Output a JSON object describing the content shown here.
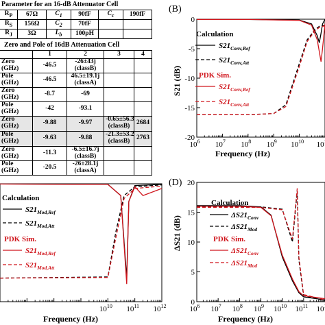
{
  "table1": {
    "caption": "Parameter for an 16-dB Attenuator Cell",
    "rows": [
      [
        "R_P",
        "67Ω",
        "C_1",
        "90fF",
        "C_c",
        "190fF"
      ],
      [
        "R_S",
        "156Ω",
        "C_2",
        "70fF",
        "",
        ""
      ],
      [
        "R_J",
        "3Ω",
        "L_b",
        "100pH",
        "",
        ""
      ]
    ]
  },
  "table2": {
    "caption": "Zero and Pole of 16dB Attenuation Cell",
    "header": [
      "",
      "1",
      "2",
      "3",
      "4"
    ],
    "rows": [
      [
        "Zero (GHz)",
        "-46.5",
        "-26±43j (classB)",
        "",
        ""
      ],
      [
        "Pole (GHz)",
        "-46.5",
        "46.5±19.1j (classA)",
        "",
        ""
      ],
      [
        "Zero (GHz)",
        "-8.7",
        "-69",
        "",
        ""
      ],
      [
        "Pole (GHz)",
        "-42",
        "-93.1",
        "",
        ""
      ],
      [
        "Zero (GHz)",
        "-9.88",
        "-9.97",
        "-0.65±56.3j (classB)",
        "2684"
      ],
      [
        "Pole (GHz)",
        "-9.63",
        "-9.88",
        "-21.3±53.2j (classB)",
        "2763"
      ],
      [
        "Zero (GHz)",
        "-11.3",
        "-6.5±16.7j (classB)",
        "",
        ""
      ],
      [
        "Pole (GHz)",
        "-20.5",
        "-26±28.1j (classA)",
        "",
        ""
      ]
    ]
  },
  "panelB": {
    "label": "(B)",
    "ylabel": "S21 (dB)",
    "xlabel": "Frequency (Hz)",
    "yticks": [
      "0",
      "-5",
      "-10",
      "-15",
      "-20"
    ],
    "xticks": [
      "10",
      "10",
      "10",
      "10",
      "10",
      "10",
      "10"
    ],
    "xexps": [
      "6",
      "7",
      "8",
      "9",
      "10",
      "11"
    ],
    "legend": {
      "calc_title": "Calculation",
      "s_main": "S21",
      "ref_sub": "Conv,Ref",
      "att_sub": "Conv,Att",
      "pdk_title": "PDK Sim."
    }
  },
  "panelC": {
    "xlabel": "Frequency (Hz)",
    "xticks": [
      "10",
      "10",
      "10"
    ],
    "xexps": [
      "10",
      "11",
      "12"
    ],
    "legend": {
      "calc_title": "Calculation",
      "s_main": "S21",
      "ref_sub": "Mod,Ref",
      "att_sub": "Mod,Att",
      "pdk_title": "PDK Sim."
    }
  },
  "panelD": {
    "label": "(D)",
    "ylabel": "ΔS21 (dB)",
    "xlabel": "Frequency (Hz)",
    "yticks": [
      "20",
      "15",
      "10",
      "5",
      "0"
    ],
    "xticks": [
      "10",
      "10",
      "10",
      "10",
      "10",
      "10",
      "10"
    ],
    "xexps": [
      "6",
      "7",
      "8",
      "9",
      "10",
      "11",
      "12"
    ],
    "legend": {
      "calc_title": "Calculation",
      "s_main": "ΔS21",
      "conv_sub": "Conv",
      "mod_sub": "Mod",
      "pdk_title": "PDK Sim."
    }
  },
  "chart_data": [
    {
      "type": "line",
      "panel": "B",
      "xlabel": "Frequency (Hz)",
      "ylabel": "S21 (dB)",
      "xscale": "log",
      "xlim": [
        1000000.0,
        100000000000.0
      ],
      "ylim": [
        -20,
        0
      ],
      "series": [
        {
          "name": "S21 Conv,Ref (Calculation)",
          "color": "#000000",
          "style": "solid",
          "points": [
            [
              1000000.0,
              -0.05
            ],
            [
              100000000.0,
              -0.05
            ],
            [
              10000000000.0,
              -0.15
            ],
            [
              30000000000.0,
              -0.8
            ],
            [
              50000000000.0,
              -2.8
            ],
            [
              60000000000.0,
              -4.0
            ],
            [
              70000000000.0,
              -2.4
            ],
            [
              80000000000.0,
              -0.8
            ],
            [
              100000000000.0,
              0
            ]
          ]
        },
        {
          "name": "S21 Conv,Att (Calculation)",
          "color": "#000000",
          "style": "dashed",
          "points": [
            [
              1000000.0,
              -16.2
            ],
            [
              100000000.0,
              -16.2
            ],
            [
              1000000000.0,
              -16.0
            ],
            [
              3000000000.0,
              -14.5
            ],
            [
              10000000000.0,
              -7.5
            ],
            [
              20000000000.0,
              -3.5
            ],
            [
              40000000000.0,
              -1.8
            ],
            [
              60000000000.0,
              -1.2
            ],
            [
              100000000000.0,
              -1.0
            ]
          ]
        },
        {
          "name": "S21 Conv,Ref (PDK Sim.)",
          "color": "#d0161d",
          "style": "solid",
          "points": [
            [
              1000000.0,
              -0.05
            ],
            [
              100000000.0,
              -0.05
            ],
            [
              10000000000.0,
              -0.2
            ],
            [
              30000000000.0,
              -1.0
            ],
            [
              50000000000.0,
              -3.5
            ],
            [
              70000000000.0,
              -7.2
            ],
            [
              80000000000.0,
              -5.0
            ],
            [
              100000000000.0,
              -0.8
            ]
          ]
        },
        {
          "name": "S21 Conv,Att (PDK Sim.)",
          "color": "#d0161d",
          "style": "dashed",
          "points": [
            [
              1000000.0,
              -16.2
            ],
            [
              100000000.0,
              -16.2
            ],
            [
              1000000000.0,
              -16.0
            ],
            [
              3000000000.0,
              -14.8
            ],
            [
              10000000000.0,
              -8.0
            ],
            [
              20000000000.0,
              -3.8
            ],
            [
              40000000000.0,
              -2.0
            ],
            [
              60000000000.0,
              -1.4
            ],
            [
              100000000000.0,
              -1.1
            ]
          ]
        }
      ]
    },
    {
      "type": "line",
      "panel": "C",
      "xlabel": "Frequency (Hz)",
      "xscale": "log",
      "xlim": [
        1000000.0,
        1000000000000.0
      ],
      "series": [
        {
          "name": "S21 Mod,Ref (Calculation)",
          "color": "#000000",
          "style": "solid",
          "points": [
            [
              1000000.0,
              -0.05
            ],
            [
              10000000000.0,
              -0.1
            ],
            [
              30000000000.0,
              -2.0
            ],
            [
              50000000000.0,
              -16.0
            ],
            [
              60000000000.0,
              -3.0
            ],
            [
              100000000000.0,
              -0.3
            ],
            [
              1000000000000.0,
              -0.1
            ]
          ]
        },
        {
          "name": "S21 Mod,Att (Calculation)",
          "color": "#000000",
          "style": "dashed",
          "points": [
            [
              1000000.0,
              -16.0
            ],
            [
              10000000000.0,
              -15.8
            ],
            [
              20000000000.0,
              -8.0
            ],
            [
              40000000000.0,
              -2.0
            ],
            [
              100000000000.0,
              -0.5
            ],
            [
              1000000000000.0,
              -0.2
            ]
          ]
        },
        {
          "name": "S21 Mod,Ref (PDK Sim.)",
          "color": "#d0161d",
          "style": "solid",
          "points": [
            [
              1000000.0,
              -0.05
            ],
            [
              10000000000.0,
              -0.1
            ],
            [
              30000000000.0,
              -2.0
            ],
            [
              50000000000.0,
              -17.0
            ],
            [
              60000000000.0,
              -3.0
            ],
            [
              100000000000.0,
              -0.5
            ],
            [
              200000000000.0,
              -2.0
            ],
            [
              1000000000000.0,
              -0.8
            ]
          ]
        },
        {
          "name": "S21 Mod,Att (PDK Sim.)",
          "color": "#d0161d",
          "style": "dashed",
          "points": [
            [
              1000000.0,
              -16.0
            ],
            [
              10000000000.0,
              -15.9
            ],
            [
              20000000000.0,
              -9.0
            ],
            [
              40000000000.0,
              -2.5
            ],
            [
              100000000000.0,
              -0.8
            ],
            [
              1000000000000.0,
              -0.4
            ]
          ]
        }
      ]
    },
    {
      "type": "line",
      "panel": "D",
      "xlabel": "Frequency (Hz)",
      "ylabel": "ΔS21 (dB)",
      "xscale": "log",
      "xlim": [
        1000000.0,
        1000000000000.0
      ],
      "ylim": [
        0,
        20
      ],
      "series": [
        {
          "name": "ΔS21 Conv (Calculation)",
          "color": "#000000",
          "style": "solid",
          "points": [
            [
              1000000.0,
              16.1
            ],
            [
              100000000.0,
              16.1
            ],
            [
              1000000000.0,
              15.9
            ],
            [
              3000000000.0,
              14.5
            ],
            [
              10000000000.0,
              7.5
            ],
            [
              30000000000.0,
              3.5
            ],
            [
              60000000000.0,
              1.5
            ],
            [
              100000000000.0,
              0.8
            ],
            [
              1000000000000.0,
              0.3
            ]
          ]
        },
        {
          "name": "ΔS21 Mod (Calculation)",
          "color": "#000000",
          "style": "dashed",
          "points": [
            [
              1000000.0,
              15.9
            ],
            [
              1000000000.0,
              15.9
            ],
            [
              10000000000.0,
              15.5
            ],
            [
              30000000000.0,
              10.0
            ],
            [
              50000000000.0,
              18.5
            ],
            [
              60000000000.0,
              7.0
            ],
            [
              100000000000.0,
              1.0
            ],
            [
              1000000000000.0,
              0.2
            ]
          ]
        },
        {
          "name": "ΔS21 Conv (PDK Sim.)",
          "color": "#d0161d",
          "style": "solid",
          "points": [
            [
              1000000.0,
              16.0
            ],
            [
              100000000.0,
              16.0
            ],
            [
              1000000000.0,
              15.8
            ],
            [
              3000000000.0,
              14.4
            ],
            [
              10000000000.0,
              7.8
            ],
            [
              30000000000.0,
              3.8
            ],
            [
              60000000000.0,
              1.7
            ],
            [
              100000000000.0,
              1.0
            ],
            [
              1000000000000.0,
              0.5
            ]
          ]
        },
        {
          "name": "ΔS21 Mod (PDK Sim.)",
          "color": "#d0161d",
          "style": "dashed",
          "points": [
            [
              1000000.0,
              15.8
            ],
            [
              1000000000.0,
              15.8
            ],
            [
              10000000000.0,
              15.4
            ],
            [
              30000000000.0,
              10.5
            ],
            [
              50000000000.0,
              19.0
            ],
            [
              60000000000.0,
              7.5
            ],
            [
              100000000000.0,
              1.2
            ],
            [
              1000000000000.0,
              0.3
            ]
          ]
        }
      ]
    }
  ]
}
